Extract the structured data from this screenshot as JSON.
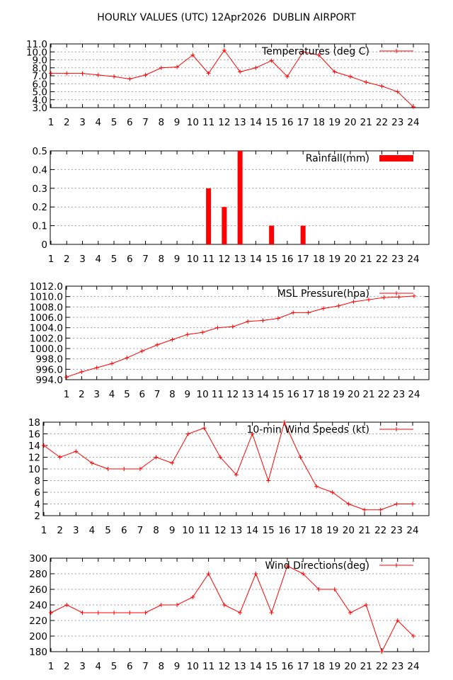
{
  "title": "HOURLY VALUES (UTC) 12Apr2026  DUBLIN AIRPORT",
  "colors": {
    "series": "#ff0000",
    "grid": "#a0a0a0",
    "axis": "#000000"
  },
  "chart_data": [
    {
      "type": "line",
      "name": "Temperatures (deg C)",
      "x": [
        1,
        2,
        3,
        4,
        5,
        6,
        7,
        8,
        9,
        10,
        11,
        12,
        13,
        14,
        15,
        16,
        17,
        18,
        19,
        20,
        21,
        22,
        23,
        24
      ],
      "values": [
        7.3,
        7.3,
        7.3,
        7.1,
        6.9,
        6.6,
        7.1,
        8.0,
        8.1,
        9.6,
        7.3,
        10.2,
        7.5,
        8.0,
        8.9,
        6.9,
        10.0,
        9.6,
        7.5,
        6.9,
        6.2,
        5.7,
        5.0,
        3.1
      ],
      "ylim": [
        3.0,
        11.0
      ],
      "yticks": [
        "3.0",
        "4.0",
        "5.0",
        "6.0",
        "7.0",
        "8.0",
        "9.0",
        "10.0",
        "11.0"
      ],
      "xticks": [
        "1",
        "2",
        "3",
        "4",
        "5",
        "6",
        "7",
        "8",
        "9",
        "10",
        "11",
        "12",
        "13",
        "14",
        "15",
        "16",
        "17",
        "18",
        "19",
        "20",
        "21",
        "22",
        "23",
        "24"
      ],
      "grid": true,
      "legend": "top-right"
    },
    {
      "type": "bar",
      "name": "Rainfall(mm)",
      "x": [
        1,
        2,
        3,
        4,
        5,
        6,
        7,
        8,
        9,
        10,
        11,
        12,
        13,
        14,
        15,
        16,
        17,
        18,
        19,
        20,
        21,
        22,
        23,
        24
      ],
      "values": [
        0,
        0,
        0,
        0,
        0,
        0,
        0,
        0,
        0,
        0,
        0.3,
        0.2,
        0.5,
        0,
        0.1,
        0,
        0.1,
        0,
        0,
        0,
        0,
        0,
        0,
        0
      ],
      "ylim": [
        0,
        0.5
      ],
      "yticks": [
        "0",
        "0.1",
        "0.2",
        "0.3",
        "0.4",
        "0.5"
      ],
      "xticks": [
        "1",
        "2",
        "3",
        "4",
        "5",
        "6",
        "7",
        "8",
        "9",
        "10",
        "11",
        "12",
        "13",
        "14",
        "15",
        "16",
        "17",
        "18",
        "19",
        "20",
        "21",
        "22",
        "23",
        "24"
      ],
      "grid": true,
      "legend": "top-right"
    },
    {
      "type": "line",
      "name": "MSL Pressure(hpa)",
      "x": [
        1,
        2,
        3,
        4,
        5,
        6,
        7,
        8,
        9,
        10,
        11,
        12,
        13,
        14,
        15,
        16,
        17,
        18,
        19,
        20,
        21,
        22,
        23,
        24
      ],
      "values": [
        994.5,
        995.5,
        996.3,
        997.1,
        998.2,
        999.5,
        1000.7,
        1001.7,
        1002.7,
        1003.1,
        1004.0,
        1004.2,
        1005.2,
        1005.4,
        1005.8,
        1006.9,
        1006.9,
        1007.7,
        1008.2,
        1009.0,
        1009.4,
        1009.8,
        1009.9,
        1010.1
      ],
      "ylim": [
        994.0,
        1012.0
      ],
      "yticks": [
        "994.0",
        "996.0",
        "998.0",
        "1000.0",
        "1002.0",
        "1004.0",
        "1006.0",
        "1008.0",
        "1010.0",
        "1012.0"
      ],
      "xticks": [
        "1",
        "2",
        "3",
        "4",
        "5",
        "6",
        "7",
        "8",
        "9",
        "10",
        "11",
        "12",
        "13",
        "14",
        "15",
        "16",
        "17",
        "18",
        "19",
        "20",
        "21",
        "22",
        "23",
        "24"
      ],
      "grid": true,
      "legend": "top-right"
    },
    {
      "type": "line",
      "name": "10-min Wind Speeds (kt)",
      "x": [
        1,
        2,
        3,
        4,
        5,
        6,
        7,
        8,
        9,
        10,
        11,
        12,
        13,
        14,
        15,
        16,
        17,
        18,
        19,
        20,
        21,
        22,
        23,
        24
      ],
      "values": [
        14,
        12,
        13,
        11,
        10,
        10,
        10,
        12,
        11,
        16,
        17,
        12,
        9,
        16,
        8,
        18,
        12,
        7,
        6,
        4,
        3,
        3,
        4,
        4
      ],
      "ylim": [
        2,
        18
      ],
      "yticks": [
        "2",
        "4",
        "6",
        "8",
        "10",
        "12",
        "14",
        "16",
        "18"
      ],
      "xticks": [
        "1",
        "2",
        "3",
        "4",
        "5",
        "6",
        "7",
        "8",
        "9",
        "10",
        "11",
        "12",
        "13",
        "14",
        "15",
        "16",
        "17",
        "18",
        "19",
        "20",
        "21",
        "22",
        "23",
        "24"
      ],
      "grid": true,
      "legend": "top-right"
    },
    {
      "type": "line",
      "name": "Wind Directions(deg)",
      "x": [
        1,
        2,
        3,
        4,
        5,
        6,
        7,
        8,
        9,
        10,
        11,
        12,
        13,
        14,
        15,
        16,
        17,
        18,
        19,
        20,
        21,
        22,
        23,
        24
      ],
      "values": [
        230,
        240,
        230,
        230,
        230,
        230,
        230,
        240,
        240,
        250,
        280,
        240,
        230,
        280,
        230,
        290,
        280,
        260,
        260,
        230,
        240,
        180,
        220,
        200
      ],
      "ylim": [
        180,
        300
      ],
      "yticks": [
        "180",
        "200",
        "220",
        "240",
        "260",
        "280",
        "300"
      ],
      "xticks": [
        "1",
        "2",
        "3",
        "4",
        "5",
        "6",
        "7",
        "8",
        "9",
        "10",
        "11",
        "12",
        "13",
        "14",
        "15",
        "16",
        "17",
        "18",
        "19",
        "20",
        "21",
        "22",
        "23",
        "24"
      ],
      "grid": true,
      "legend": "top-right"
    }
  ]
}
